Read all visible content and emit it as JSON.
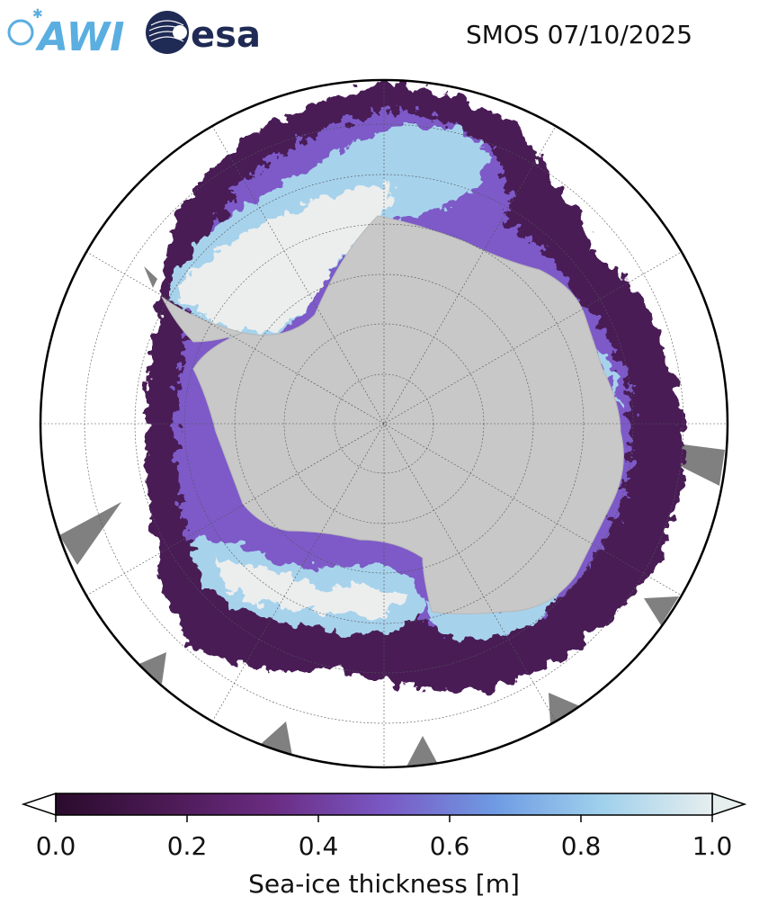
{
  "header": {
    "logos": [
      {
        "name": "AWI",
        "text": "AWI",
        "color": "#5aaee0"
      },
      {
        "name": "esa",
        "text": "esa",
        "color": "#1f2a55"
      }
    ],
    "title": "SMOS 07/10/2025"
  },
  "map": {
    "projection": "south-polar-stereographic",
    "land_color": "#c8c8c8",
    "no_data_color": "#808080",
    "ocean_color": "#ffffff",
    "graticule": true
  },
  "colorbar": {
    "label": "Sea-ice thickness [m]",
    "min": 0.0,
    "max": 1.0,
    "ticks": [
      "0.0",
      "0.2",
      "0.4",
      "0.6",
      "0.8",
      "1.0"
    ],
    "extend": "both",
    "colors": [
      "#2a0b2c",
      "#4c1a55",
      "#6a2c82",
      "#7a58c4",
      "#6f9be3",
      "#9fd0ec",
      "#e6eeee"
    ]
  }
}
